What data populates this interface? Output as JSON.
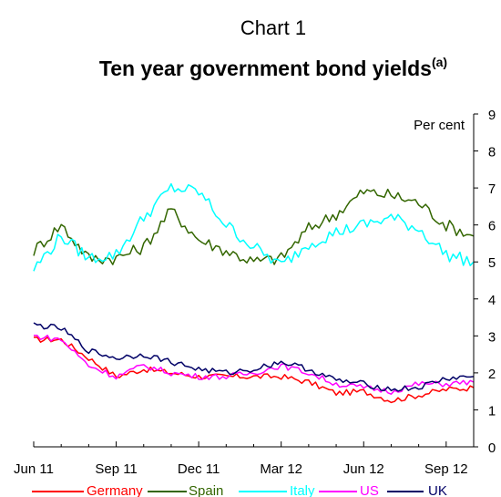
{
  "page": {
    "chart_label": "Chart 1",
    "title": "Ten year government bond yields",
    "title_note": "(a)"
  },
  "chart_data": {
    "type": "line",
    "title": "Ten year government bond yields",
    "ylabel": "Per cent",
    "ylim": [
      0,
      9
    ],
    "yticks": [
      "0",
      "1",
      "2",
      "3",
      "4",
      "5",
      "6",
      "7",
      "8",
      "9"
    ],
    "xticks": [
      "Jun 11",
      "Sep 11",
      "Dec 11",
      "Mar 12",
      "Jun 12",
      "Sep 12"
    ],
    "legend_position": "bottom",
    "grid": false,
    "series": [
      {
        "name": "Germany",
        "color": "#ff0000",
        "x": [
          "Jun 11",
          "Jul 11",
          "Aug 11",
          "Sep 11",
          "Oct 11",
          "Nov 11",
          "Dec 11",
          "Jan 12",
          "Feb 12",
          "Mar 12",
          "Apr 12",
          "May 12",
          "Jun 12",
          "Jul 12",
          "Aug 12",
          "Sep 12",
          "Oct 12"
        ],
        "values": [
          2.9,
          2.9,
          2.4,
          1.9,
          2.1,
          2.0,
          1.9,
          1.9,
          1.9,
          1.9,
          1.75,
          1.45,
          1.5,
          1.25,
          1.4,
          1.55,
          1.6
        ]
      },
      {
        "name": "Spain",
        "color": "#336600",
        "x": [
          "Jun 11",
          "Jul 11",
          "Aug 11",
          "Sep 11",
          "Oct 11",
          "Nov 11",
          "Dec 11",
          "Jan 12",
          "Feb 12",
          "Mar 12",
          "Apr 12",
          "May 12",
          "Jun 12",
          "Jul 12",
          "Aug 12",
          "Sep 12",
          "Oct 12"
        ],
        "values": [
          5.3,
          6.0,
          5.1,
          5.1,
          5.4,
          6.4,
          5.6,
          5.3,
          5.0,
          5.1,
          5.9,
          6.3,
          6.9,
          6.8,
          6.6,
          6.0,
          5.7
        ]
      },
      {
        "name": "Italy",
        "color": "#00ffff",
        "x": [
          "Jun 11",
          "Jul 11",
          "Aug 11",
          "Sep 11",
          "Oct 11",
          "Nov 11",
          "Dec 11",
          "Jan 12",
          "Feb 12",
          "Mar 12",
          "Apr 12",
          "May 12",
          "Jun 12",
          "Jul 12",
          "Aug 12",
          "Sep 12",
          "Oct 12"
        ],
        "values": [
          4.8,
          5.7,
          5.1,
          5.2,
          6.2,
          7.0,
          6.9,
          6.0,
          5.4,
          4.9,
          5.5,
          5.8,
          6.0,
          6.2,
          5.9,
          5.2,
          5.0
        ]
      },
      {
        "name": "US",
        "color": "#ff00ff",
        "x": [
          "Jun 11",
          "Jul 11",
          "Aug 11",
          "Sep 11",
          "Oct 11",
          "Nov 11",
          "Dec 11",
          "Jan 12",
          "Feb 12",
          "Mar 12",
          "Apr 12",
          "May 12",
          "Jun 12",
          "Jul 12",
          "Aug 12",
          "Sep 12",
          "Oct 12"
        ],
        "values": [
          3.0,
          2.9,
          2.2,
          1.9,
          2.2,
          2.0,
          1.9,
          1.9,
          2.0,
          2.2,
          2.0,
          1.7,
          1.6,
          1.5,
          1.7,
          1.7,
          1.75
        ]
      },
      {
        "name": "UK",
        "color": "#000066",
        "x": [
          "Jun 11",
          "Jul 11",
          "Aug 11",
          "Sep 11",
          "Oct 11",
          "Nov 11",
          "Dec 11",
          "Jan 12",
          "Feb 12",
          "Mar 12",
          "Apr 12",
          "May 12",
          "Jun 12",
          "Jul 12",
          "Aug 12",
          "Sep 12",
          "Oct 12"
        ],
        "values": [
          3.3,
          3.2,
          2.6,
          2.4,
          2.5,
          2.3,
          2.1,
          2.0,
          2.1,
          2.3,
          2.1,
          1.8,
          1.7,
          1.55,
          1.6,
          1.85,
          1.9
        ]
      }
    ]
  }
}
